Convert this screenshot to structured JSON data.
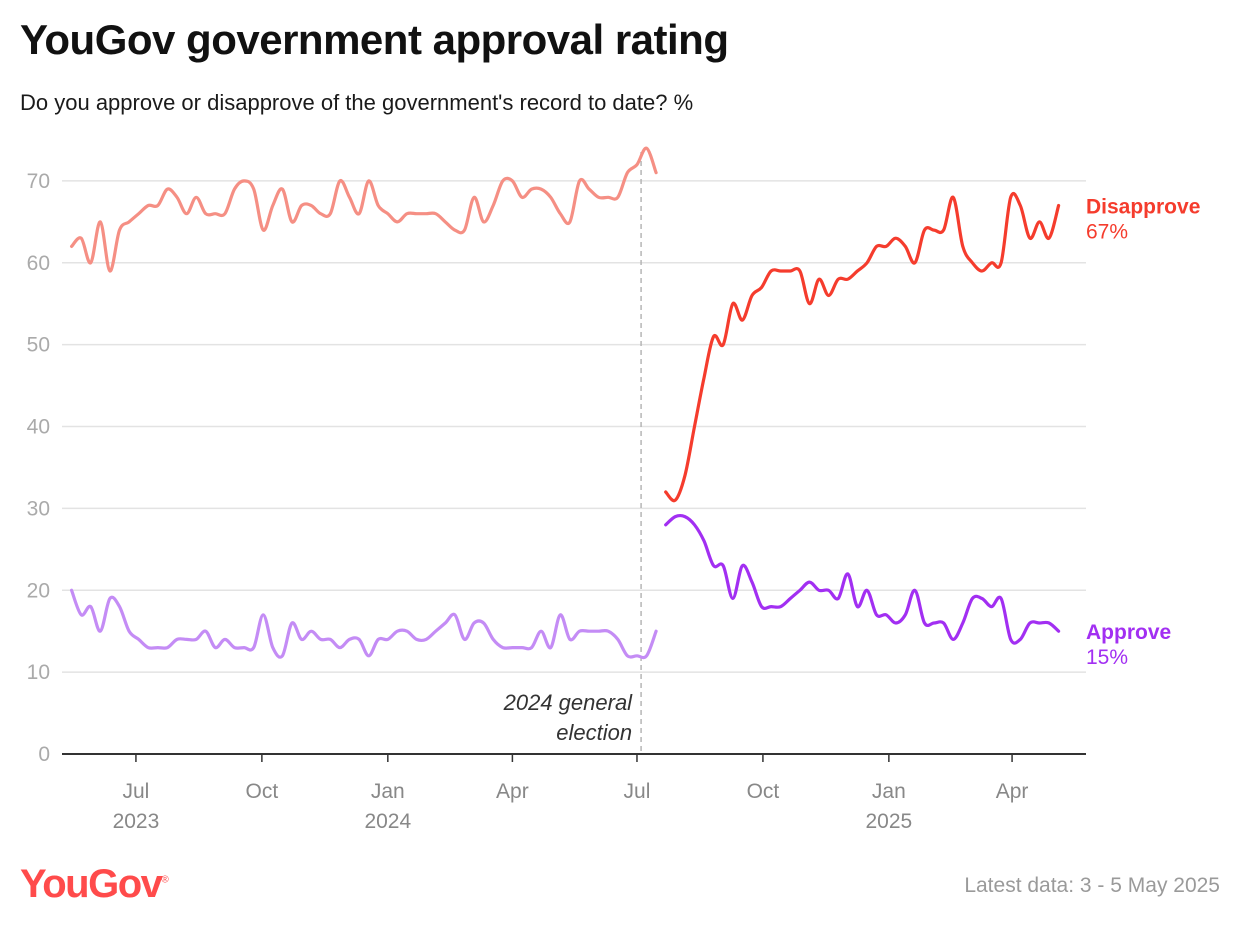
{
  "header": {
    "title": "YouGov government approval rating",
    "subtitle": "Do you approve or disapprove of the government's record to date? %"
  },
  "footer": {
    "logo": "YouGov",
    "latest": "Latest data: 3 - 5 May 2025"
  },
  "colors": {
    "disapprove_old": "#f58f84",
    "approve_old": "#c48cf5",
    "disapprove": "#f53c2d",
    "approve": "#a22ff2",
    "grid": "#e3e3e3",
    "election_line": "#b5b5b5"
  },
  "chart_data": {
    "type": "line",
    "y_ticks": [
      0,
      10,
      20,
      30,
      40,
      50,
      60,
      70
    ],
    "ylim": [
      0,
      75
    ],
    "x_range": [
      "2023-05-08",
      "2025-05-25"
    ],
    "grid": "horizontal",
    "x_ticks": [
      {
        "date": "2023-07-01",
        "month": "Jul",
        "year": "2023"
      },
      {
        "date": "2023-10-01",
        "month": "Oct",
        "year": ""
      },
      {
        "date": "2024-01-01",
        "month": "Jan",
        "year": "2024"
      },
      {
        "date": "2024-04-01",
        "month": "Apr",
        "year": ""
      },
      {
        "date": "2024-07-01",
        "month": "Jul",
        "year": ""
      },
      {
        "date": "2024-10-01",
        "month": "Oct",
        "year": ""
      },
      {
        "date": "2025-01-01",
        "month": "Jan",
        "year": "2025"
      },
      {
        "date": "2025-04-01",
        "month": "Apr",
        "year": ""
      }
    ],
    "annotation": {
      "date": "2024-07-04",
      "text": [
        "2024 general",
        "election"
      ]
    },
    "series": [
      {
        "name": "Disapprove",
        "period": "before election",
        "color": "#f58f84",
        "points": [
          [
            "2023-05-15",
            62
          ],
          [
            "2023-05-22",
            63
          ],
          [
            "2023-05-29",
            60
          ],
          [
            "2023-06-05",
            65
          ],
          [
            "2023-06-12",
            59
          ],
          [
            "2023-06-19",
            64
          ],
          [
            "2023-06-26",
            65
          ],
          [
            "2023-07-03",
            66
          ],
          [
            "2023-07-10",
            67
          ],
          [
            "2023-07-17",
            67
          ],
          [
            "2023-07-24",
            69
          ],
          [
            "2023-07-31",
            68
          ],
          [
            "2023-08-07",
            66
          ],
          [
            "2023-08-14",
            68
          ],
          [
            "2023-08-21",
            66
          ],
          [
            "2023-08-28",
            66
          ],
          [
            "2023-09-04",
            66
          ],
          [
            "2023-09-11",
            69
          ],
          [
            "2023-09-18",
            70
          ],
          [
            "2023-09-25",
            69
          ],
          [
            "2023-10-02",
            64
          ],
          [
            "2023-10-09",
            67
          ],
          [
            "2023-10-16",
            69
          ],
          [
            "2023-10-23",
            65
          ],
          [
            "2023-10-30",
            67
          ],
          [
            "2023-11-06",
            67
          ],
          [
            "2023-11-13",
            66
          ],
          [
            "2023-11-20",
            66
          ],
          [
            "2023-11-27",
            70
          ],
          [
            "2023-12-04",
            68
          ],
          [
            "2023-12-11",
            66
          ],
          [
            "2023-12-18",
            70
          ],
          [
            "2023-12-25",
            67
          ],
          [
            "2024-01-01",
            66
          ],
          [
            "2024-01-08",
            65
          ],
          [
            "2024-01-15",
            66
          ],
          [
            "2024-01-22",
            66
          ],
          [
            "2024-01-29",
            66
          ],
          [
            "2024-02-05",
            66
          ],
          [
            "2024-02-12",
            65
          ],
          [
            "2024-02-19",
            64
          ],
          [
            "2024-02-26",
            64
          ],
          [
            "2024-03-04",
            68
          ],
          [
            "2024-03-11",
            65
          ],
          [
            "2024-03-18",
            67
          ],
          [
            "2024-03-25",
            70
          ],
          [
            "2024-04-01",
            70
          ],
          [
            "2024-04-08",
            68
          ],
          [
            "2024-04-15",
            69
          ],
          [
            "2024-04-22",
            69
          ],
          [
            "2024-04-29",
            68
          ],
          [
            "2024-05-06",
            66
          ],
          [
            "2024-05-13",
            65
          ],
          [
            "2024-05-20",
            70
          ],
          [
            "2024-05-27",
            69
          ],
          [
            "2024-06-03",
            68
          ],
          [
            "2024-06-10",
            68
          ],
          [
            "2024-06-17",
            68
          ],
          [
            "2024-06-24",
            71
          ],
          [
            "2024-07-01",
            72
          ],
          [
            "2024-07-08",
            74
          ],
          [
            "2024-07-15",
            71
          ]
        ]
      },
      {
        "name": "Approve",
        "period": "before election",
        "color": "#c48cf5",
        "points": [
          [
            "2023-05-15",
            20
          ],
          [
            "2023-05-22",
            17
          ],
          [
            "2023-05-29",
            18
          ],
          [
            "2023-06-05",
            15
          ],
          [
            "2023-06-12",
            19
          ],
          [
            "2023-06-19",
            18
          ],
          [
            "2023-06-26",
            15
          ],
          [
            "2023-07-03",
            14
          ],
          [
            "2023-07-10",
            13
          ],
          [
            "2023-07-17",
            13
          ],
          [
            "2023-07-24",
            13
          ],
          [
            "2023-07-31",
            14
          ],
          [
            "2023-08-07",
            14
          ],
          [
            "2023-08-14",
            14
          ],
          [
            "2023-08-21",
            15
          ],
          [
            "2023-08-28",
            13
          ],
          [
            "2023-09-04",
            14
          ],
          [
            "2023-09-11",
            13
          ],
          [
            "2023-09-18",
            13
          ],
          [
            "2023-09-25",
            13
          ],
          [
            "2023-10-02",
            17
          ],
          [
            "2023-10-09",
            13
          ],
          [
            "2023-10-16",
            12
          ],
          [
            "2023-10-23",
            16
          ],
          [
            "2023-10-30",
            14
          ],
          [
            "2023-11-06",
            15
          ],
          [
            "2023-11-13",
            14
          ],
          [
            "2023-11-20",
            14
          ],
          [
            "2023-11-27",
            13
          ],
          [
            "2023-12-04",
            14
          ],
          [
            "2023-12-11",
            14
          ],
          [
            "2023-12-18",
            12
          ],
          [
            "2023-12-25",
            14
          ],
          [
            "2024-01-01",
            14
          ],
          [
            "2024-01-08",
            15
          ],
          [
            "2024-01-15",
            15
          ],
          [
            "2024-01-22",
            14
          ],
          [
            "2024-01-29",
            14
          ],
          [
            "2024-02-05",
            15
          ],
          [
            "2024-02-12",
            16
          ],
          [
            "2024-02-19",
            17
          ],
          [
            "2024-02-26",
            14
          ],
          [
            "2024-03-04",
            16
          ],
          [
            "2024-03-11",
            16
          ],
          [
            "2024-03-18",
            14
          ],
          [
            "2024-03-25",
            13
          ],
          [
            "2024-04-01",
            13
          ],
          [
            "2024-04-08",
            13
          ],
          [
            "2024-04-15",
            13
          ],
          [
            "2024-04-22",
            15
          ],
          [
            "2024-04-29",
            13
          ],
          [
            "2024-05-06",
            17
          ],
          [
            "2024-05-13",
            14
          ],
          [
            "2024-05-20",
            15
          ],
          [
            "2024-05-27",
            15
          ],
          [
            "2024-06-03",
            15
          ],
          [
            "2024-06-10",
            15
          ],
          [
            "2024-06-17",
            14
          ],
          [
            "2024-06-24",
            12
          ],
          [
            "2024-07-01",
            12
          ],
          [
            "2024-07-08",
            12
          ],
          [
            "2024-07-15",
            15
          ]
        ]
      },
      {
        "name": "Disapprove",
        "period": "after election",
        "color": "#f53c2d",
        "latest": "67%",
        "points": [
          [
            "2024-07-22",
            32
          ],
          [
            "2024-07-29",
            31
          ],
          [
            "2024-08-05",
            34
          ],
          [
            "2024-08-12",
            40
          ],
          [
            "2024-08-19",
            46
          ],
          [
            "2024-08-26",
            51
          ],
          [
            "2024-09-02",
            50
          ],
          [
            "2024-09-09",
            55
          ],
          [
            "2024-09-16",
            53
          ],
          [
            "2024-09-23",
            56
          ],
          [
            "2024-09-30",
            57
          ],
          [
            "2024-10-07",
            59
          ],
          [
            "2024-10-14",
            59
          ],
          [
            "2024-10-21",
            59
          ],
          [
            "2024-10-28",
            59
          ],
          [
            "2024-11-04",
            55
          ],
          [
            "2024-11-11",
            58
          ],
          [
            "2024-11-18",
            56
          ],
          [
            "2024-11-25",
            58
          ],
          [
            "2024-12-02",
            58
          ],
          [
            "2024-12-09",
            59
          ],
          [
            "2024-12-16",
            60
          ],
          [
            "2024-12-23",
            62
          ],
          [
            "2024-12-30",
            62
          ],
          [
            "2025-01-06",
            63
          ],
          [
            "2025-01-13",
            62
          ],
          [
            "2025-01-20",
            60
          ],
          [
            "2025-01-27",
            64
          ],
          [
            "2025-02-03",
            64
          ],
          [
            "2025-02-10",
            64
          ],
          [
            "2025-02-17",
            68
          ],
          [
            "2025-02-24",
            62
          ],
          [
            "2025-03-03",
            60
          ],
          [
            "2025-03-10",
            59
          ],
          [
            "2025-03-17",
            60
          ],
          [
            "2025-03-24",
            60
          ],
          [
            "2025-03-31",
            68
          ],
          [
            "2025-04-07",
            67
          ],
          [
            "2025-04-14",
            63
          ],
          [
            "2025-04-21",
            65
          ],
          [
            "2025-04-28",
            63
          ],
          [
            "2025-05-05",
            67
          ]
        ]
      },
      {
        "name": "Approve",
        "period": "after election",
        "color": "#a22ff2",
        "latest": "15%",
        "points": [
          [
            "2024-07-22",
            28
          ],
          [
            "2024-07-29",
            29
          ],
          [
            "2024-08-05",
            29
          ],
          [
            "2024-08-12",
            28
          ],
          [
            "2024-08-19",
            26
          ],
          [
            "2024-08-26",
            23
          ],
          [
            "2024-09-02",
            23
          ],
          [
            "2024-09-09",
            19
          ],
          [
            "2024-09-16",
            23
          ],
          [
            "2024-09-23",
            21
          ],
          [
            "2024-09-30",
            18
          ],
          [
            "2024-10-07",
            18
          ],
          [
            "2024-10-14",
            18
          ],
          [
            "2024-10-21",
            19
          ],
          [
            "2024-10-28",
            20
          ],
          [
            "2024-11-04",
            21
          ],
          [
            "2024-11-11",
            20
          ],
          [
            "2024-11-18",
            20
          ],
          [
            "2024-11-25",
            19
          ],
          [
            "2024-12-02",
            22
          ],
          [
            "2024-12-09",
            18
          ],
          [
            "2024-12-16",
            20
          ],
          [
            "2024-12-23",
            17
          ],
          [
            "2024-12-30",
            17
          ],
          [
            "2025-01-06",
            16
          ],
          [
            "2025-01-13",
            17
          ],
          [
            "2025-01-20",
            20
          ],
          [
            "2025-01-27",
            16
          ],
          [
            "2025-02-03",
            16
          ],
          [
            "2025-02-10",
            16
          ],
          [
            "2025-02-17",
            14
          ],
          [
            "2025-02-24",
            16
          ],
          [
            "2025-03-03",
            19
          ],
          [
            "2025-03-10",
            19
          ],
          [
            "2025-03-17",
            18
          ],
          [
            "2025-03-24",
            19
          ],
          [
            "2025-03-31",
            14
          ],
          [
            "2025-04-07",
            14
          ],
          [
            "2025-04-14",
            16
          ],
          [
            "2025-04-21",
            16
          ],
          [
            "2025-04-28",
            16
          ],
          [
            "2025-05-05",
            15
          ]
        ]
      }
    ]
  }
}
